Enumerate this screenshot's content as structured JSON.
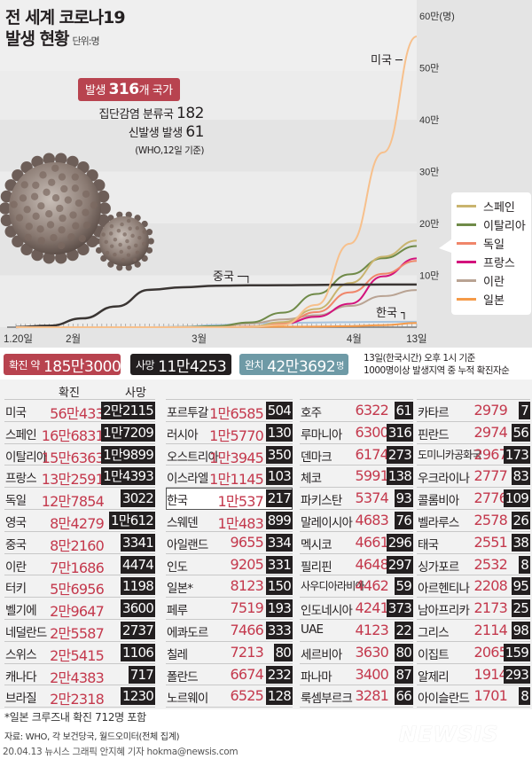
{
  "header": {
    "title_line1": "전 세계 코로나19",
    "title_line2": "발생 현황",
    "unit": "단위:명"
  },
  "outbreak": {
    "badge_prefix": "발생",
    "badge_count": "316",
    "badge_suffix": "개 국가",
    "cluster_label": "집단감염 분류국",
    "cluster_value": "182",
    "sporadic_label": "신발생 발생",
    "sporadic_value": "61",
    "source": "(WHO,12일 기준)"
  },
  "chart_data": {
    "type": "line",
    "x": [
      "1.20",
      "1.27",
      "2.3",
      "2.10",
      "2.17",
      "2.24",
      "3.2",
      "3.9",
      "3.16",
      "3.23",
      "3.30",
      "4.6",
      "4.13"
    ],
    "x_tick_labels": [
      "1.20일",
      "2월",
      "3월",
      "4월",
      "13일"
    ],
    "y_tick_labels": [
      "10만",
      "20만",
      "30만",
      "40만",
      "50만",
      "60만(명)"
    ],
    "ylim": [
      0,
      600000
    ],
    "series": [
      {
        "name": "미국",
        "color": "#f7c08c",
        "values": [
          0,
          0,
          0,
          0,
          0,
          0,
          100,
          600,
          4500,
          43000,
          161000,
          337000,
          560433
        ]
      },
      {
        "name": "중국",
        "color": "#3a3533",
        "values": [
          300,
          2800,
          17000,
          40000,
          72000,
          77000,
          80000,
          80700,
          81000,
          81500,
          82000,
          82300,
          82160
        ]
      },
      {
        "name": "스페인",
        "color": "#c9b46e",
        "values": [
          0,
          0,
          0,
          0,
          0,
          0,
          100,
          1000,
          9900,
          35000,
          85000,
          136000,
          166831
        ]
      },
      {
        "name": "이탈리아",
        "color": "#6f8a48",
        "values": [
          0,
          0,
          0,
          0,
          0,
          200,
          2000,
          9200,
          28000,
          64000,
          102000,
          133000,
          156363
        ]
      },
      {
        "name": "독일",
        "color": "#f0866a",
        "values": [
          0,
          0,
          0,
          0,
          0,
          0,
          200,
          1200,
          7300,
          29000,
          67000,
          103000,
          127854
        ]
      },
      {
        "name": "프랑스",
        "color": "#d3127c",
        "values": [
          0,
          0,
          0,
          0,
          0,
          0,
          200,
          1200,
          6700,
          20000,
          45000,
          98000,
          132591
        ]
      },
      {
        "name": "이란",
        "color": "#b9a393",
        "values": [
          0,
          0,
          0,
          0,
          0,
          60,
          1500,
          7000,
          15000,
          23000,
          41000,
          60000,
          71686
        ]
      },
      {
        "name": "일본",
        "color": "#f59a48",
        "values": [
          0,
          0,
          20,
          30,
          60,
          150,
          300,
          500,
          800,
          1100,
          1900,
          3900,
          8123
        ]
      },
      {
        "name": "한국",
        "color": "#a8c4de",
        "values": [
          0,
          0,
          20,
          30,
          30,
          800,
          4200,
          7400,
          8300,
          9000,
          9700,
          10300,
          10537
        ]
      }
    ],
    "annotations": [
      "미국",
      "중국",
      "한국"
    ]
  },
  "summary": {
    "confirmed_label": "확진 약",
    "confirmed_value": "185만3000",
    "deaths_label": "사망",
    "deaths_value": "11만4253",
    "recovered_label": "완치",
    "recovered_value": "42만3692",
    "recovered_unit": "명",
    "note_line1": "13일(한국시간) 오후 1시 기준",
    "note_line2": "1000명이상 발생지역 중 누적 확진자순",
    "colors": {
      "confirmed": "#b8434f",
      "deaths": "#231f20",
      "recovered": "#6e9aa6"
    }
  },
  "table": {
    "header_confirmed": "확진",
    "header_deaths": "사망",
    "columns": [
      [
        [
          "미국",
          "56만433",
          "2만2115"
        ],
        [
          "스페인",
          "16만6831",
          "1만7209"
        ],
        [
          "이탈리아",
          "15만6363",
          "1만9899"
        ],
        [
          "프랑스",
          "13만2591",
          "1만4393"
        ],
        [
          "독일",
          "12만7854",
          "3022"
        ],
        [
          "영국",
          "8만4279",
          "1만612"
        ],
        [
          "중국",
          "8만2160",
          "3341"
        ],
        [
          "이란",
          "7만1686",
          "4474"
        ],
        [
          "터키",
          "5만6956",
          "1198"
        ],
        [
          "벨기에",
          "2만9647",
          "3600"
        ],
        [
          "네덜란드",
          "2만5587",
          "2737"
        ],
        [
          "스위스",
          "2만5415",
          "1106"
        ],
        [
          "캐나다",
          "2만4383",
          "717"
        ],
        [
          "브라질",
          "2만2318",
          "1230"
        ]
      ],
      [
        [
          "포르투갈",
          "1만6585",
          "504"
        ],
        [
          "러시아",
          "1만5770",
          "130"
        ],
        [
          "오스트리아",
          "1만3945",
          "350"
        ],
        [
          "이스라엘",
          "1만1145",
          "103"
        ],
        [
          "한국",
          "1만537",
          "217"
        ],
        [
          "스웨덴",
          "1만483",
          "899"
        ],
        [
          "아일랜드",
          "9655",
          "334"
        ],
        [
          "인도",
          "9205",
          "331"
        ],
        [
          "일본*",
          "8123",
          "150"
        ],
        [
          "페루",
          "7519",
          "193"
        ],
        [
          "에콰도르",
          "7466",
          "333"
        ],
        [
          "칠레",
          "7213",
          "80"
        ],
        [
          "폴란드",
          "6674",
          "232"
        ],
        [
          "노르웨이",
          "6525",
          "128"
        ]
      ],
      [
        [
          "호주",
          "6322",
          "61"
        ],
        [
          "루마니아",
          "6300",
          "316"
        ],
        [
          "덴마크",
          "6174",
          "273"
        ],
        [
          "체코",
          "5991",
          "138"
        ],
        [
          "파키스탄",
          "5374",
          "93"
        ],
        [
          "말레이시아",
          "4683",
          "76"
        ],
        [
          "멕시코",
          "4661",
          "296"
        ],
        [
          "필리핀",
          "4648",
          "297"
        ],
        [
          "사우디아라비아",
          "4462",
          "59"
        ],
        [
          "인도네시아",
          "4241",
          "373"
        ],
        [
          "UAE",
          "4123",
          "22"
        ],
        [
          "세르비아",
          "3630",
          "80"
        ],
        [
          "파나마",
          "3400",
          "87"
        ],
        [
          "룩셈부르크",
          "3281",
          "66"
        ]
      ],
      [
        [
          "카타르",
          "2979",
          "7"
        ],
        [
          "핀란드",
          "2974",
          "56"
        ],
        [
          "도미니카공화국",
          "2967",
          "173"
        ],
        [
          "우크라이나",
          "2777",
          "83"
        ],
        [
          "콜롬비아",
          "2776",
          "109"
        ],
        [
          "벨라루스",
          "2578",
          "26"
        ],
        [
          "태국",
          "2551",
          "38"
        ],
        [
          "싱가포르",
          "2532",
          "8"
        ],
        [
          "아르헨티나",
          "2208",
          "95"
        ],
        [
          "남아프리카",
          "2173",
          "25"
        ],
        [
          "그리스",
          "2114",
          "98"
        ],
        [
          "이집트",
          "2065",
          "159"
        ],
        [
          "알제리",
          "1914",
          "293"
        ],
        [
          "아이슬란드",
          "1701",
          "8"
        ]
      ]
    ]
  },
  "footer": {
    "footnote": "*일본 크루즈내 확진 712명 포함",
    "source": "자료: WHO, 각 보건당국, 월드오미터(전체 집계)",
    "credit": "20.04.13 뉴시스 그래픽 안지혜 기자 hokma@newsis.com",
    "logo": "NEWSIS"
  }
}
